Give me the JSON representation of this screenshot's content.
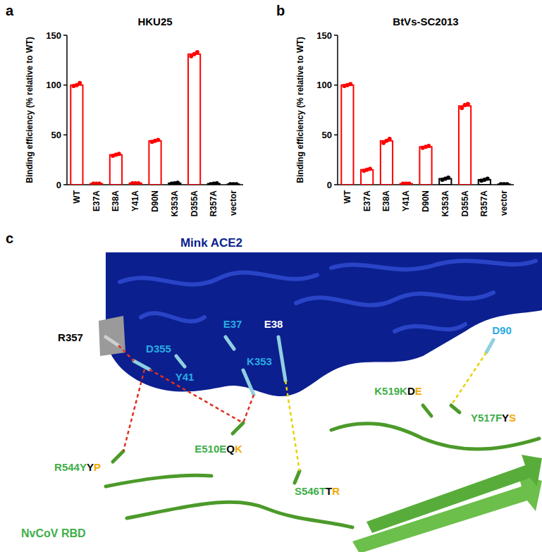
{
  "chart_data": [
    {
      "panel": "a",
      "type": "bar",
      "title": "HKU25",
      "y_label": "Binding efficiency (% relative to WT)",
      "categories": [
        "WT",
        "E37A",
        "E38A",
        "Y41A",
        "D90N",
        "K353A",
        "D355A",
        "R357A",
        "vector"
      ],
      "values": [
        100,
        1,
        30,
        1.5,
        44,
        1.5,
        131,
        1,
        0.5
      ],
      "replicates": [
        [
          99,
          100,
          102
        ],
        [
          1,
          1,
          1
        ],
        [
          29,
          30,
          31
        ],
        [
          1.5,
          1.5,
          1.5
        ],
        [
          43,
          44,
          45
        ],
        [
          1,
          1.5,
          2
        ],
        [
          129,
          131,
          133
        ],
        [
          0.5,
          1,
          1.5
        ],
        [
          0.5,
          0.5,
          0.5
        ]
      ],
      "colors": [
        "#ff0000",
        "#ff0000",
        "#ff0000",
        "#ff0000",
        "#ff0000",
        "#000000",
        "#ff0000",
        "#000000",
        "#000000"
      ],
      "ylim": [
        0,
        150
      ],
      "yticks": [
        0,
        50,
        100,
        150
      ]
    },
    {
      "panel": "b",
      "type": "bar",
      "title": "BtVs-SC2013",
      "y_label": "Binding efficiency (% relative to WT)",
      "categories": [
        "WT",
        "E37A",
        "E38A",
        "Y41A",
        "D90N",
        "K353A",
        "D355A",
        "R357A",
        "vector"
      ],
      "values": [
        100,
        15,
        44,
        1,
        38,
        6,
        79,
        5,
        0.5
      ],
      "replicates": [
        [
          99,
          100,
          101
        ],
        [
          14,
          15,
          16
        ],
        [
          42,
          44,
          46
        ],
        [
          1,
          1,
          1
        ],
        [
          37,
          38,
          39
        ],
        [
          5,
          6,
          7
        ],
        [
          77,
          80,
          81
        ],
        [
          4,
          5,
          6
        ],
        [
          0.5,
          0.5,
          0.5
        ]
      ],
      "colors": [
        "#ff0000",
        "#ff0000",
        "#ff0000",
        "#ff0000",
        "#ff0000",
        "#000000",
        "#ff0000",
        "#000000",
        "#000000"
      ],
      "ylim": [
        0,
        150
      ],
      "yticks": [
        0,
        50,
        100,
        150
      ]
    }
  ],
  "structure": {
    "panel": "c",
    "ace2_label": "Mink ACE2",
    "rbd_label": "NvCoV RBD",
    "ace2_residues": [
      {
        "text": "R357",
        "color": "#000000"
      },
      {
        "text": "D355",
        "color": "#29abe2"
      },
      {
        "text": "Y41",
        "color": "#29abe2"
      },
      {
        "text": "E37",
        "color": "#29abe2"
      },
      {
        "text": "E38",
        "color": "#ffffff"
      },
      {
        "text": "K353",
        "color": "#29abe2"
      },
      {
        "text": "D90",
        "color": "#29abe2"
      }
    ],
    "rbd_residues": [
      {
        "parts": [
          {
            "text": "R544Y",
            "color": "#3fae49"
          },
          {
            "text": "Y",
            "color": "#000000"
          },
          {
            "text": "P",
            "color": "#f2a900"
          }
        ]
      },
      {
        "parts": [
          {
            "text": "E510E",
            "color": "#3fae49"
          },
          {
            "text": "Q",
            "color": "#000000"
          },
          {
            "text": "K",
            "color": "#f2a900"
          }
        ]
      },
      {
        "parts": [
          {
            "text": "S546T",
            "color": "#3fae49"
          },
          {
            "text": "T",
            "color": "#000000"
          },
          {
            "text": "R",
            "color": "#f2a900"
          }
        ]
      },
      {
        "parts": [
          {
            "text": "K519K",
            "color": "#3fae49"
          },
          {
            "text": "D",
            "color": "#000000"
          },
          {
            "text": "E",
            "color": "#f2a900"
          }
        ]
      },
      {
        "parts": [
          {
            "text": "Y517F",
            "color": "#3fae49"
          },
          {
            "text": "Y",
            "color": "#000000"
          },
          {
            "text": "S",
            "color": "#f2a900"
          }
        ]
      }
    ]
  }
}
